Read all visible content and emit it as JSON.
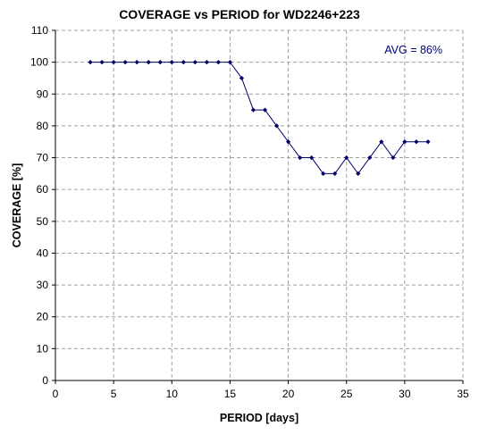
{
  "chart_data": {
    "type": "line",
    "title": "COVERAGE vs PERIOD for WD2246+223",
    "xlabel": "PERIOD [days]",
    "ylabel": "COVERAGE [%]",
    "xlim": [
      0,
      35
    ],
    "ylim": [
      0,
      110
    ],
    "xticks": [
      0,
      5,
      10,
      15,
      20,
      25,
      30,
      35
    ],
    "yticks": [
      0,
      10,
      20,
      30,
      40,
      50,
      60,
      70,
      80,
      90,
      100,
      110
    ],
    "grid": true,
    "legend": "none",
    "annotation": "AVG = 86%",
    "series": [
      {
        "x": [
          3,
          4,
          5,
          6,
          7,
          8,
          9,
          10,
          11,
          12,
          13,
          14,
          15,
          16,
          17,
          18,
          19,
          20,
          21,
          22,
          23,
          24,
          25,
          26,
          27,
          28,
          29,
          30,
          31,
          32
        ],
        "y": [
          100,
          100,
          100,
          100,
          100,
          100,
          100,
          100,
          100,
          100,
          100,
          100,
          100,
          95,
          85,
          85,
          80,
          75,
          70,
          70,
          65,
          65,
          70,
          65,
          70,
          75,
          70,
          75,
          75,
          75
        ]
      }
    ],
    "colors": {
      "line": "#000066",
      "marker": "#000066",
      "annotation": "#000080",
      "grid": "#a0a0a0",
      "axis": "#000000"
    }
  }
}
